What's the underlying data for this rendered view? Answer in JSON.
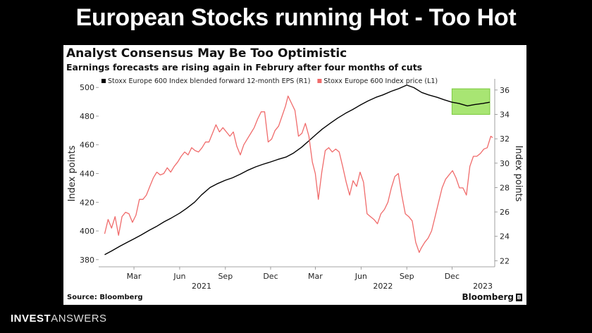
{
  "slide_title": "European Stocks running Hot - Too Hot",
  "footer": {
    "brand_strong": "INVEST",
    "brand_light": "ANSWERS"
  },
  "chart_data": {
    "type": "line",
    "title": "Analyst Consensus May Be Too Optimistic",
    "subtitle": "Earnings forecasts are rising again in Februry after four months of cuts",
    "source": "Source: Bloomberg",
    "brand": "Bloomberg",
    "brand_icon": "bloomberg-b-icon",
    "ylabel_left": "Index points",
    "ylabel_right": "Index points",
    "left_axis": {
      "ylim": [
        375,
        505
      ],
      "ticks": [
        "380",
        "400",
        "420",
        "440",
        "460",
        "480",
        "500"
      ]
    },
    "right_axis": {
      "ylim": [
        21.5,
        36.8
      ],
      "ticks": [
        "22",
        "24",
        "26",
        "28",
        "30",
        "32",
        "34",
        "36"
      ]
    },
    "x_ticks": [
      {
        "label": "Mar",
        "date": "2021-03-01"
      },
      {
        "label": "Jun",
        "date": "2021-06-01"
      },
      {
        "label": "Sep",
        "date": "2021-09-01"
      },
      {
        "label": "Dec",
        "date": "2021-12-01"
      },
      {
        "label": "Mar",
        "date": "2022-03-01"
      },
      {
        "label": "Jun",
        "date": "2022-06-01"
      },
      {
        "label": "Sep",
        "date": "2022-09-01"
      },
      {
        "label": "Dec",
        "date": "2022-12-01"
      }
    ],
    "year_labels": [
      {
        "label": "2021",
        "date": "2021-07-15"
      },
      {
        "label": "2022",
        "date": "2022-07-15"
      },
      {
        "label": "2023",
        "date": "2023-02-01"
      }
    ],
    "xlim": [
      "2020-12-20",
      "2023-02-25"
    ],
    "grid": false,
    "legend_position": "top",
    "highlight_box": {
      "color": "#99e05a",
      "x_range": [
        "2022-12-01",
        "2023-02-15"
      ],
      "y_range_right": [
        34.0,
        36.1
      ]
    },
    "series": [
      {
        "name": "Stoxx Europe 600 Index blended forward 12-month EPS (R1)",
        "axis": "right",
        "color": "#000000",
        "points": [
          [
            "2021-01-01",
            22.5
          ],
          [
            "2021-01-15",
            22.8
          ],
          [
            "2021-02-01",
            23.2
          ],
          [
            "2021-02-15",
            23.5
          ],
          [
            "2021-03-01",
            23.8
          ],
          [
            "2021-03-15",
            24.1
          ],
          [
            "2021-04-01",
            24.5
          ],
          [
            "2021-04-15",
            24.8
          ],
          [
            "2021-05-01",
            25.2
          ],
          [
            "2021-05-15",
            25.5
          ],
          [
            "2021-06-01",
            25.9
          ],
          [
            "2021-06-15",
            26.3
          ],
          [
            "2021-07-01",
            26.8
          ],
          [
            "2021-07-15",
            27.4
          ],
          [
            "2021-08-01",
            28.0
          ],
          [
            "2021-08-15",
            28.3
          ],
          [
            "2021-09-01",
            28.6
          ],
          [
            "2021-09-15",
            28.8
          ],
          [
            "2021-10-01",
            29.1
          ],
          [
            "2021-10-15",
            29.4
          ],
          [
            "2021-11-01",
            29.7
          ],
          [
            "2021-11-15",
            29.9
          ],
          [
            "2021-12-01",
            30.1
          ],
          [
            "2021-12-15",
            30.3
          ],
          [
            "2022-01-01",
            30.5
          ],
          [
            "2022-01-15",
            30.8
          ],
          [
            "2022-02-01",
            31.3
          ],
          [
            "2022-02-15",
            31.8
          ],
          [
            "2022-03-01",
            32.3
          ],
          [
            "2022-03-15",
            32.8
          ],
          [
            "2022-04-01",
            33.3
          ],
          [
            "2022-04-15",
            33.7
          ],
          [
            "2022-05-01",
            34.1
          ],
          [
            "2022-05-15",
            34.4
          ],
          [
            "2022-06-01",
            34.8
          ],
          [
            "2022-06-15",
            35.1
          ],
          [
            "2022-07-01",
            35.4
          ],
          [
            "2022-07-15",
            35.6
          ],
          [
            "2022-08-01",
            35.9
          ],
          [
            "2022-08-15",
            36.1
          ],
          [
            "2022-09-01",
            36.4
          ],
          [
            "2022-09-15",
            36.2
          ],
          [
            "2022-10-01",
            35.8
          ],
          [
            "2022-10-15",
            35.6
          ],
          [
            "2022-11-01",
            35.4
          ],
          [
            "2022-11-15",
            35.2
          ],
          [
            "2022-12-01",
            35.0
          ],
          [
            "2022-12-15",
            34.9
          ],
          [
            "2023-01-01",
            34.7
          ],
          [
            "2023-01-15",
            34.8
          ],
          [
            "2023-02-01",
            34.9
          ],
          [
            "2023-02-15",
            35.0
          ]
        ]
      },
      {
        "name": "Stoxx Europe 600 Index price (L1)",
        "axis": "left",
        "color": "#f06b6b",
        "points": [
          [
            "2021-01-01",
            398
          ],
          [
            "2021-01-08",
            408
          ],
          [
            "2021-01-15",
            402
          ],
          [
            "2021-01-22",
            410
          ],
          [
            "2021-01-29",
            397
          ],
          [
            "2021-02-05",
            410
          ],
          [
            "2021-02-12",
            413
          ],
          [
            "2021-02-19",
            412
          ],
          [
            "2021-02-26",
            406
          ],
          [
            "2021-03-05",
            411
          ],
          [
            "2021-03-12",
            422
          ],
          [
            "2021-03-19",
            422
          ],
          [
            "2021-03-26",
            425
          ],
          [
            "2021-04-02",
            431
          ],
          [
            "2021-04-09",
            437
          ],
          [
            "2021-04-16",
            441
          ],
          [
            "2021-04-23",
            439
          ],
          [
            "2021-04-30",
            440
          ],
          [
            "2021-05-07",
            444
          ],
          [
            "2021-05-14",
            441
          ],
          [
            "2021-05-21",
            445
          ],
          [
            "2021-05-28",
            448
          ],
          [
            "2021-06-04",
            452
          ],
          [
            "2021-06-11",
            455
          ],
          [
            "2021-06-18",
            453
          ],
          [
            "2021-06-25",
            458
          ],
          [
            "2021-07-02",
            456
          ],
          [
            "2021-07-09",
            455
          ],
          [
            "2021-07-16",
            458
          ],
          [
            "2021-07-23",
            462
          ],
          [
            "2021-07-30",
            462
          ],
          [
            "2021-08-06",
            468
          ],
          [
            "2021-08-13",
            474
          ],
          [
            "2021-08-20",
            469
          ],
          [
            "2021-08-27",
            472
          ],
          [
            "2021-09-03",
            469
          ],
          [
            "2021-09-10",
            466
          ],
          [
            "2021-09-17",
            469
          ],
          [
            "2021-09-24",
            459
          ],
          [
            "2021-10-01",
            453
          ],
          [
            "2021-10-08",
            460
          ],
          [
            "2021-10-15",
            464
          ],
          [
            "2021-10-22",
            468
          ],
          [
            "2021-10-29",
            472
          ],
          [
            "2021-11-05",
            478
          ],
          [
            "2021-11-12",
            483
          ],
          [
            "2021-11-19",
            483
          ],
          [
            "2021-11-26",
            462
          ],
          [
            "2021-12-03",
            464
          ],
          [
            "2021-12-10",
            470
          ],
          [
            "2021-12-17",
            473
          ],
          [
            "2021-12-24",
            480
          ],
          [
            "2021-12-31",
            487
          ],
          [
            "2022-01-05",
            494
          ],
          [
            "2022-01-12",
            489
          ],
          [
            "2022-01-19",
            484
          ],
          [
            "2022-01-26",
            466
          ],
          [
            "2022-02-02",
            468
          ],
          [
            "2022-02-09",
            475
          ],
          [
            "2022-02-16",
            466
          ],
          [
            "2022-02-23",
            448
          ],
          [
            "2022-03-01",
            440
          ],
          [
            "2022-03-07",
            422
          ],
          [
            "2022-03-14",
            441
          ],
          [
            "2022-03-21",
            456
          ],
          [
            "2022-03-28",
            458
          ],
          [
            "2022-04-04",
            455
          ],
          [
            "2022-04-11",
            457
          ],
          [
            "2022-04-18",
            455
          ],
          [
            "2022-04-25",
            445
          ],
          [
            "2022-05-02",
            434
          ],
          [
            "2022-05-09",
            425
          ],
          [
            "2022-05-16",
            435
          ],
          [
            "2022-05-23",
            431
          ],
          [
            "2022-05-30",
            441
          ],
          [
            "2022-06-06",
            434
          ],
          [
            "2022-06-13",
            412
          ],
          [
            "2022-06-20",
            410
          ],
          [
            "2022-06-27",
            408
          ],
          [
            "2022-07-04",
            405
          ],
          [
            "2022-07-11",
            412
          ],
          [
            "2022-07-18",
            415
          ],
          [
            "2022-07-25",
            420
          ],
          [
            "2022-08-01",
            430
          ],
          [
            "2022-08-08",
            438
          ],
          [
            "2022-08-15",
            440
          ],
          [
            "2022-08-22",
            425
          ],
          [
            "2022-08-29",
            412
          ],
          [
            "2022-09-05",
            410
          ],
          [
            "2022-09-12",
            407
          ],
          [
            "2022-09-19",
            392
          ],
          [
            "2022-09-26",
            385
          ],
          [
            "2022-09-30",
            388
          ],
          [
            "2022-10-07",
            392
          ],
          [
            "2022-10-14",
            395
          ],
          [
            "2022-10-21",
            400
          ],
          [
            "2022-10-28",
            410
          ],
          [
            "2022-11-04",
            420
          ],
          [
            "2022-11-11",
            430
          ],
          [
            "2022-11-18",
            436
          ],
          [
            "2022-11-25",
            439
          ],
          [
            "2022-12-02",
            442
          ],
          [
            "2022-12-09",
            437
          ],
          [
            "2022-12-16",
            430
          ],
          [
            "2022-12-23",
            430
          ],
          [
            "2022-12-30",
            425
          ],
          [
            "2023-01-06",
            445
          ],
          [
            "2023-01-13",
            452
          ],
          [
            "2023-01-20",
            452
          ],
          [
            "2023-01-27",
            454
          ],
          [
            "2023-02-03",
            457
          ],
          [
            "2023-02-10",
            458
          ],
          [
            "2023-02-17",
            466
          ],
          [
            "2023-02-21",
            465
          ]
        ]
      }
    ]
  }
}
